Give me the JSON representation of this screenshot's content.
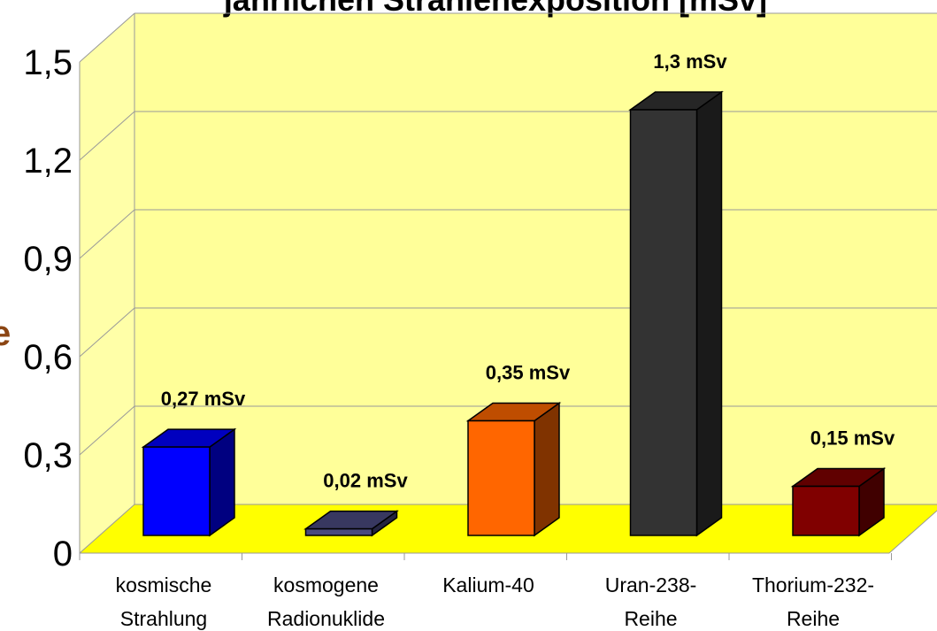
{
  "chart_data": {
    "type": "bar3d",
    "title": "jährlichen Strahlenexposition [mSv]",
    "annotation": "e",
    "categories": [
      "kosmische\nStrahlung",
      "kosmogene\nRadionuklide",
      "Kalium-40",
      "Uran-238-\nReihe",
      "Thorium-232-\nReihe"
    ],
    "values": [
      0.27,
      0.02,
      0.35,
      1.3,
      0.15
    ],
    "value_labels": [
      "0,27 mSv",
      "0,02 mSv",
      "0,35 mSv",
      "1,3 mSv",
      "0,15 mSv"
    ],
    "colors": [
      "#0000ff",
      "#4a4a80",
      "#ff6600",
      "#333333",
      "#800000"
    ],
    "ylim": [
      0,
      1.5
    ],
    "yticks": [
      {
        "value": 0,
        "label": "0"
      },
      {
        "value": 0.3,
        "label": "0,3"
      },
      {
        "value": 0.6,
        "label": "0,6"
      },
      {
        "value": 0.9,
        "label": "0,9"
      },
      {
        "value": 1.2,
        "label": "1,2"
      },
      {
        "value": 1.5,
        "label": "1,5"
      }
    ],
    "grid": true
  }
}
